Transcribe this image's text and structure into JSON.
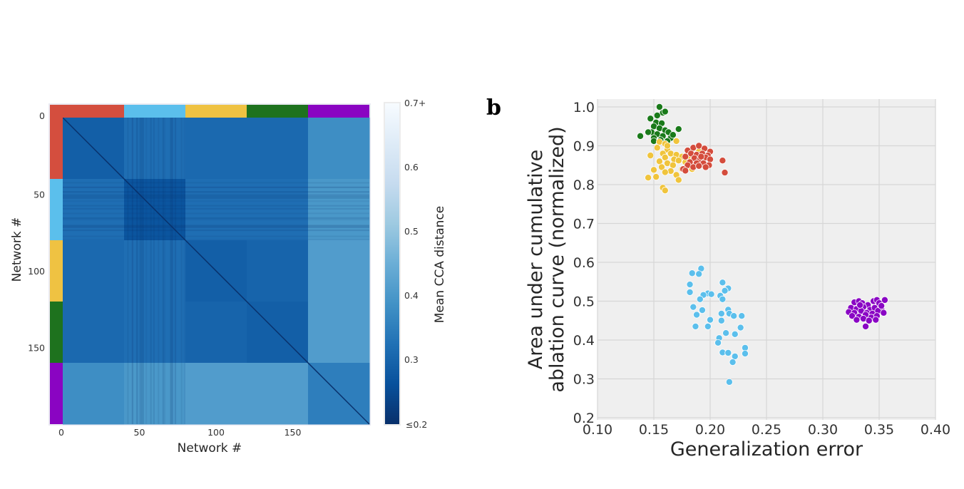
{
  "figure": {
    "panel_b_label": "b"
  },
  "chart_data": [
    {
      "type": "heatmap",
      "title": "",
      "xlabel": "Network #",
      "ylabel": "Network #",
      "n_networks": 200,
      "x_ticks": [
        "0",
        "50",
        "100",
        "150"
      ],
      "y_ticks": [
        "0",
        "50",
        "100",
        "150"
      ],
      "groups": [
        {
          "name": "red",
          "start": 0,
          "end": 40,
          "color": "#d44e3e"
        },
        {
          "name": "light-blue",
          "start": 40,
          "end": 80,
          "color": "#5bbfec"
        },
        {
          "name": "yellow",
          "start": 80,
          "end": 120,
          "color": "#efc242"
        },
        {
          "name": "green",
          "start": 120,
          "end": 160,
          "color": "#1e721e"
        },
        {
          "name": "purple",
          "start": 160,
          "end": 200,
          "color": "#8a04c2"
        }
      ],
      "block_mean_distance": [
        [
          0.29,
          0.32,
          0.31,
          0.31,
          0.38
        ],
        [
          0.32,
          0.27,
          0.32,
          0.32,
          0.4
        ],
        [
          0.31,
          0.32,
          0.29,
          0.3,
          0.41
        ],
        [
          0.31,
          0.32,
          0.3,
          0.29,
          0.41
        ],
        [
          0.38,
          0.4,
          0.41,
          0.41,
          0.35
        ]
      ],
      "diagonal_value": 0.2,
      "colorbar": {
        "label": "Mean CCA distance",
        "range": [
          0.2,
          0.7
        ],
        "ticks": [
          "≤0.2",
          "0.3",
          "0.4",
          "0.5",
          "0.6",
          "0.7+"
        ],
        "colormap": "Blues_r"
      }
    },
    {
      "type": "scatter",
      "title": "",
      "xlabel": "Generalization error",
      "ylabel": "Area under cumulative\nablation curve (normalized)",
      "ylabel_lines": [
        "Area under cumulative",
        "ablation curve (normalized)"
      ],
      "xlim": [
        0.1,
        0.4
      ],
      "ylim": [
        0.2,
        1.0
      ],
      "x_ticks": [
        "0.10",
        "0.15",
        "0.20",
        "0.25",
        "0.30",
        "0.35",
        "0.40"
      ],
      "y_ticks": [
        "0.2",
        "0.3",
        "0.4",
        "0.5",
        "0.6",
        "0.7",
        "0.8",
        "0.9",
        "1.0"
      ],
      "grid": true,
      "legend": "none",
      "series": [
        {
          "name": "green",
          "color": "#1a7a1a",
          "points": [
            [
              0.155,
              1.0
            ],
            [
              0.158,
              0.985
            ],
            [
              0.153,
              0.978
            ],
            [
              0.16,
              0.988
            ],
            [
              0.147,
              0.97
            ],
            [
              0.152,
              0.96
            ],
            [
              0.157,
              0.958
            ],
            [
              0.15,
              0.95
            ],
            [
              0.155,
              0.945
            ],
            [
              0.16,
              0.94
            ],
            [
              0.163,
              0.935
            ],
            [
              0.148,
              0.935
            ],
            [
              0.153,
              0.93
            ],
            [
              0.158,
              0.925
            ],
            [
              0.165,
              0.92
            ],
            [
              0.138,
              0.925
            ],
            [
              0.15,
              0.92
            ],
            [
              0.156,
              0.915
            ],
            [
              0.162,
              0.912
            ],
            [
              0.172,
              0.943
            ],
            [
              0.167,
              0.928
            ],
            [
              0.15,
              0.912
            ],
            [
              0.145,
              0.935
            ],
            [
              0.16,
              0.905
            ]
          ]
        },
        {
          "name": "yellow",
          "color": "#f0c43c",
          "points": [
            [
              0.155,
              0.91
            ],
            [
              0.16,
              0.905
            ],
            [
              0.153,
              0.895
            ],
            [
              0.162,
              0.89
            ],
            [
              0.17,
              0.912
            ],
            [
              0.158,
              0.88
            ],
            [
              0.165,
              0.88
            ],
            [
              0.17,
              0.877
            ],
            [
              0.175,
              0.872
            ],
            [
              0.18,
              0.87
            ],
            [
              0.147,
              0.875
            ],
            [
              0.16,
              0.87
            ],
            [
              0.168,
              0.865
            ],
            [
              0.172,
              0.862
            ],
            [
              0.178,
              0.858
            ],
            [
              0.155,
              0.86
            ],
            [
              0.162,
              0.855
            ],
            [
              0.167,
              0.85
            ],
            [
              0.175,
              0.84
            ],
            [
              0.157,
              0.845
            ],
            [
              0.165,
              0.835
            ],
            [
              0.15,
              0.838
            ],
            [
              0.16,
              0.832
            ],
            [
              0.17,
              0.825
            ],
            [
              0.145,
              0.818
            ],
            [
              0.152,
              0.82
            ],
            [
              0.172,
              0.812
            ],
            [
              0.158,
              0.792
            ],
            [
              0.16,
              0.785
            ],
            [
              0.184,
              0.84
            ],
            [
              0.192,
              0.856
            ],
            [
              0.195,
              0.848
            ],
            [
              0.19,
              0.885
            ],
            [
              0.162,
              0.9
            ]
          ]
        },
        {
          "name": "red",
          "color": "#d44c3c",
          "points": [
            [
              0.185,
              0.895
            ],
            [
              0.19,
              0.9
            ],
            [
              0.195,
              0.893
            ],
            [
              0.2,
              0.885
            ],
            [
              0.18,
              0.888
            ],
            [
              0.183,
              0.88
            ],
            [
              0.188,
              0.877
            ],
            [
              0.193,
              0.88
            ],
            [
              0.198,
              0.875
            ],
            [
              0.178,
              0.872
            ],
            [
              0.186,
              0.868
            ],
            [
              0.191,
              0.865
            ],
            [
              0.196,
              0.87
            ],
            [
              0.2,
              0.865
            ],
            [
              0.182,
              0.858
            ],
            [
              0.188,
              0.855
            ],
            [
              0.194,
              0.855
            ],
            [
              0.199,
              0.85
            ],
            [
              0.18,
              0.85
            ],
            [
              0.185,
              0.845
            ],
            [
              0.19,
              0.848
            ],
            [
              0.196,
              0.845
            ],
            [
              0.176,
              0.84
            ],
            [
              0.211,
              0.862
            ],
            [
              0.213,
              0.831
            ],
            [
              0.178,
              0.836
            ],
            [
              0.192,
              0.872
            ]
          ]
        },
        {
          "name": "light-blue",
          "color": "#5bbfec",
          "points": [
            [
              0.192,
              0.584
            ],
            [
              0.184,
              0.572
            ],
            [
              0.19,
              0.57
            ],
            [
              0.182,
              0.543
            ],
            [
              0.182,
              0.523
            ],
            [
              0.211,
              0.548
            ],
            [
              0.216,
              0.533
            ],
            [
              0.213,
              0.527
            ],
            [
              0.198,
              0.52
            ],
            [
              0.194,
              0.516
            ],
            [
              0.201,
              0.518
            ],
            [
              0.209,
              0.514
            ],
            [
              0.211,
              0.505
            ],
            [
              0.191,
              0.505
            ],
            [
              0.185,
              0.485
            ],
            [
              0.193,
              0.477
            ],
            [
              0.188,
              0.465
            ],
            [
              0.216,
              0.478
            ],
            [
              0.217,
              0.468
            ],
            [
              0.21,
              0.468
            ],
            [
              0.221,
              0.462
            ],
            [
              0.228,
              0.462
            ],
            [
              0.2,
              0.452
            ],
            [
              0.21,
              0.45
            ],
            [
              0.187,
              0.435
            ],
            [
              0.198,
              0.435
            ],
            [
              0.227,
              0.432
            ],
            [
              0.214,
              0.418
            ],
            [
              0.208,
              0.405
            ],
            [
              0.207,
              0.393
            ],
            [
              0.222,
              0.415
            ],
            [
              0.231,
              0.38
            ],
            [
              0.231,
              0.365
            ],
            [
              0.211,
              0.368
            ],
            [
              0.216,
              0.367
            ],
            [
              0.222,
              0.358
            ],
            [
              0.22,
              0.343
            ],
            [
              0.217,
              0.292
            ]
          ]
        },
        {
          "name": "purple",
          "color": "#8a06c4",
          "points": [
            [
              0.328,
              0.497
            ],
            [
              0.332,
              0.5
            ],
            [
              0.335,
              0.495
            ],
            [
              0.34,
              0.49
            ],
            [
              0.345,
              0.5
            ],
            [
              0.348,
              0.503
            ],
            [
              0.35,
              0.495
            ],
            [
              0.355,
              0.503
            ],
            [
              0.325,
              0.483
            ],
            [
              0.33,
              0.48
            ],
            [
              0.336,
              0.485
            ],
            [
              0.342,
              0.478
            ],
            [
              0.346,
              0.483
            ],
            [
              0.352,
              0.48
            ],
            [
              0.323,
              0.472
            ],
            [
              0.328,
              0.47
            ],
            [
              0.334,
              0.475
            ],
            [
              0.339,
              0.47
            ],
            [
              0.344,
              0.468
            ],
            [
              0.349,
              0.475
            ],
            [
              0.354,
              0.47
            ],
            [
              0.326,
              0.462
            ],
            [
              0.332,
              0.46
            ],
            [
              0.338,
              0.465
            ],
            [
              0.343,
              0.458
            ],
            [
              0.348,
              0.462
            ],
            [
              0.33,
              0.452
            ],
            [
              0.336,
              0.455
            ],
            [
              0.341,
              0.45
            ],
            [
              0.347,
              0.452
            ],
            [
              0.338,
              0.435
            ],
            [
              0.352,
              0.488
            ],
            [
              0.333,
              0.49
            ]
          ]
        }
      ]
    }
  ]
}
